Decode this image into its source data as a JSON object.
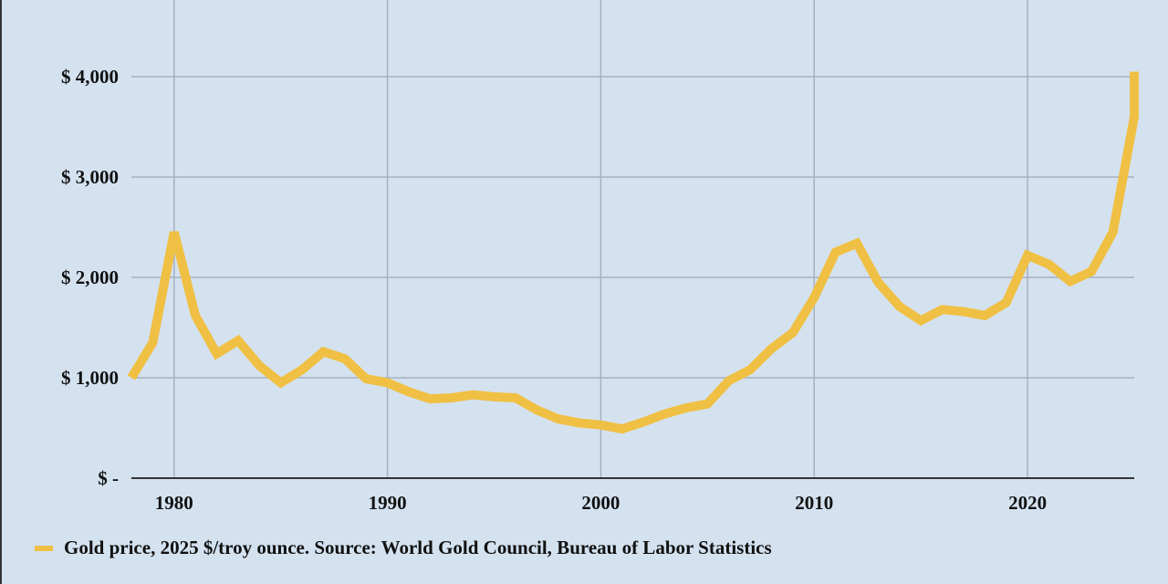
{
  "chart_data": {
    "type": "line",
    "title": "",
    "xlabel": "",
    "ylabel": "",
    "xlim": [
      1978,
      2025
    ],
    "ylim": [
      0,
      4400
    ],
    "grid": true,
    "x_ticks": [
      1980,
      1990,
      2000,
      2010,
      2020
    ],
    "x_tick_labels": [
      "1980",
      "1990",
      "2000",
      "2010",
      "2020"
    ],
    "y_ticks": [
      0,
      1000,
      2000,
      3000,
      4000
    ],
    "y_tick_labels": [
      "$ -",
      "$ 1,000",
      "$ 2,000",
      "$ 3,000",
      "$ 4,000"
    ],
    "legend_placement": "bottom-left",
    "series": [
      {
        "name": "Gold price, 2025 $/troy ounce. Source: World Gold Council, Bureau of Labor Statistics",
        "color": "#f0c044",
        "x": [
          1978,
          1979,
          1980,
          1981,
          1982,
          1983,
          1984,
          1985,
          1986,
          1987,
          1988,
          1989,
          1990,
          1991,
          1992,
          1993,
          1994,
          1995,
          1996,
          1997,
          1998,
          1999,
          2000,
          2001,
          2002,
          2003,
          2004,
          2005,
          2006,
          2007,
          2008,
          2009,
          2010,
          2011,
          2012,
          2013,
          2014,
          2015,
          2016,
          2017,
          2018,
          2019,
          2020,
          2021,
          2022,
          2023,
          2024,
          2025,
          2025
        ],
        "values": [
          1000,
          1350,
          2450,
          1620,
          1240,
          1370,
          1120,
          950,
          1080,
          1260,
          1190,
          990,
          950,
          860,
          790,
          800,
          830,
          810,
          800,
          680,
          590,
          550,
          530,
          490,
          560,
          640,
          700,
          740,
          970,
          1080,
          1290,
          1450,
          1800,
          2250,
          2340,
          1950,
          1710,
          1570,
          1680,
          1660,
          1620,
          1750,
          2220,
          2130,
          1960,
          2060,
          2450,
          3600,
          4050
        ]
      }
    ]
  }
}
